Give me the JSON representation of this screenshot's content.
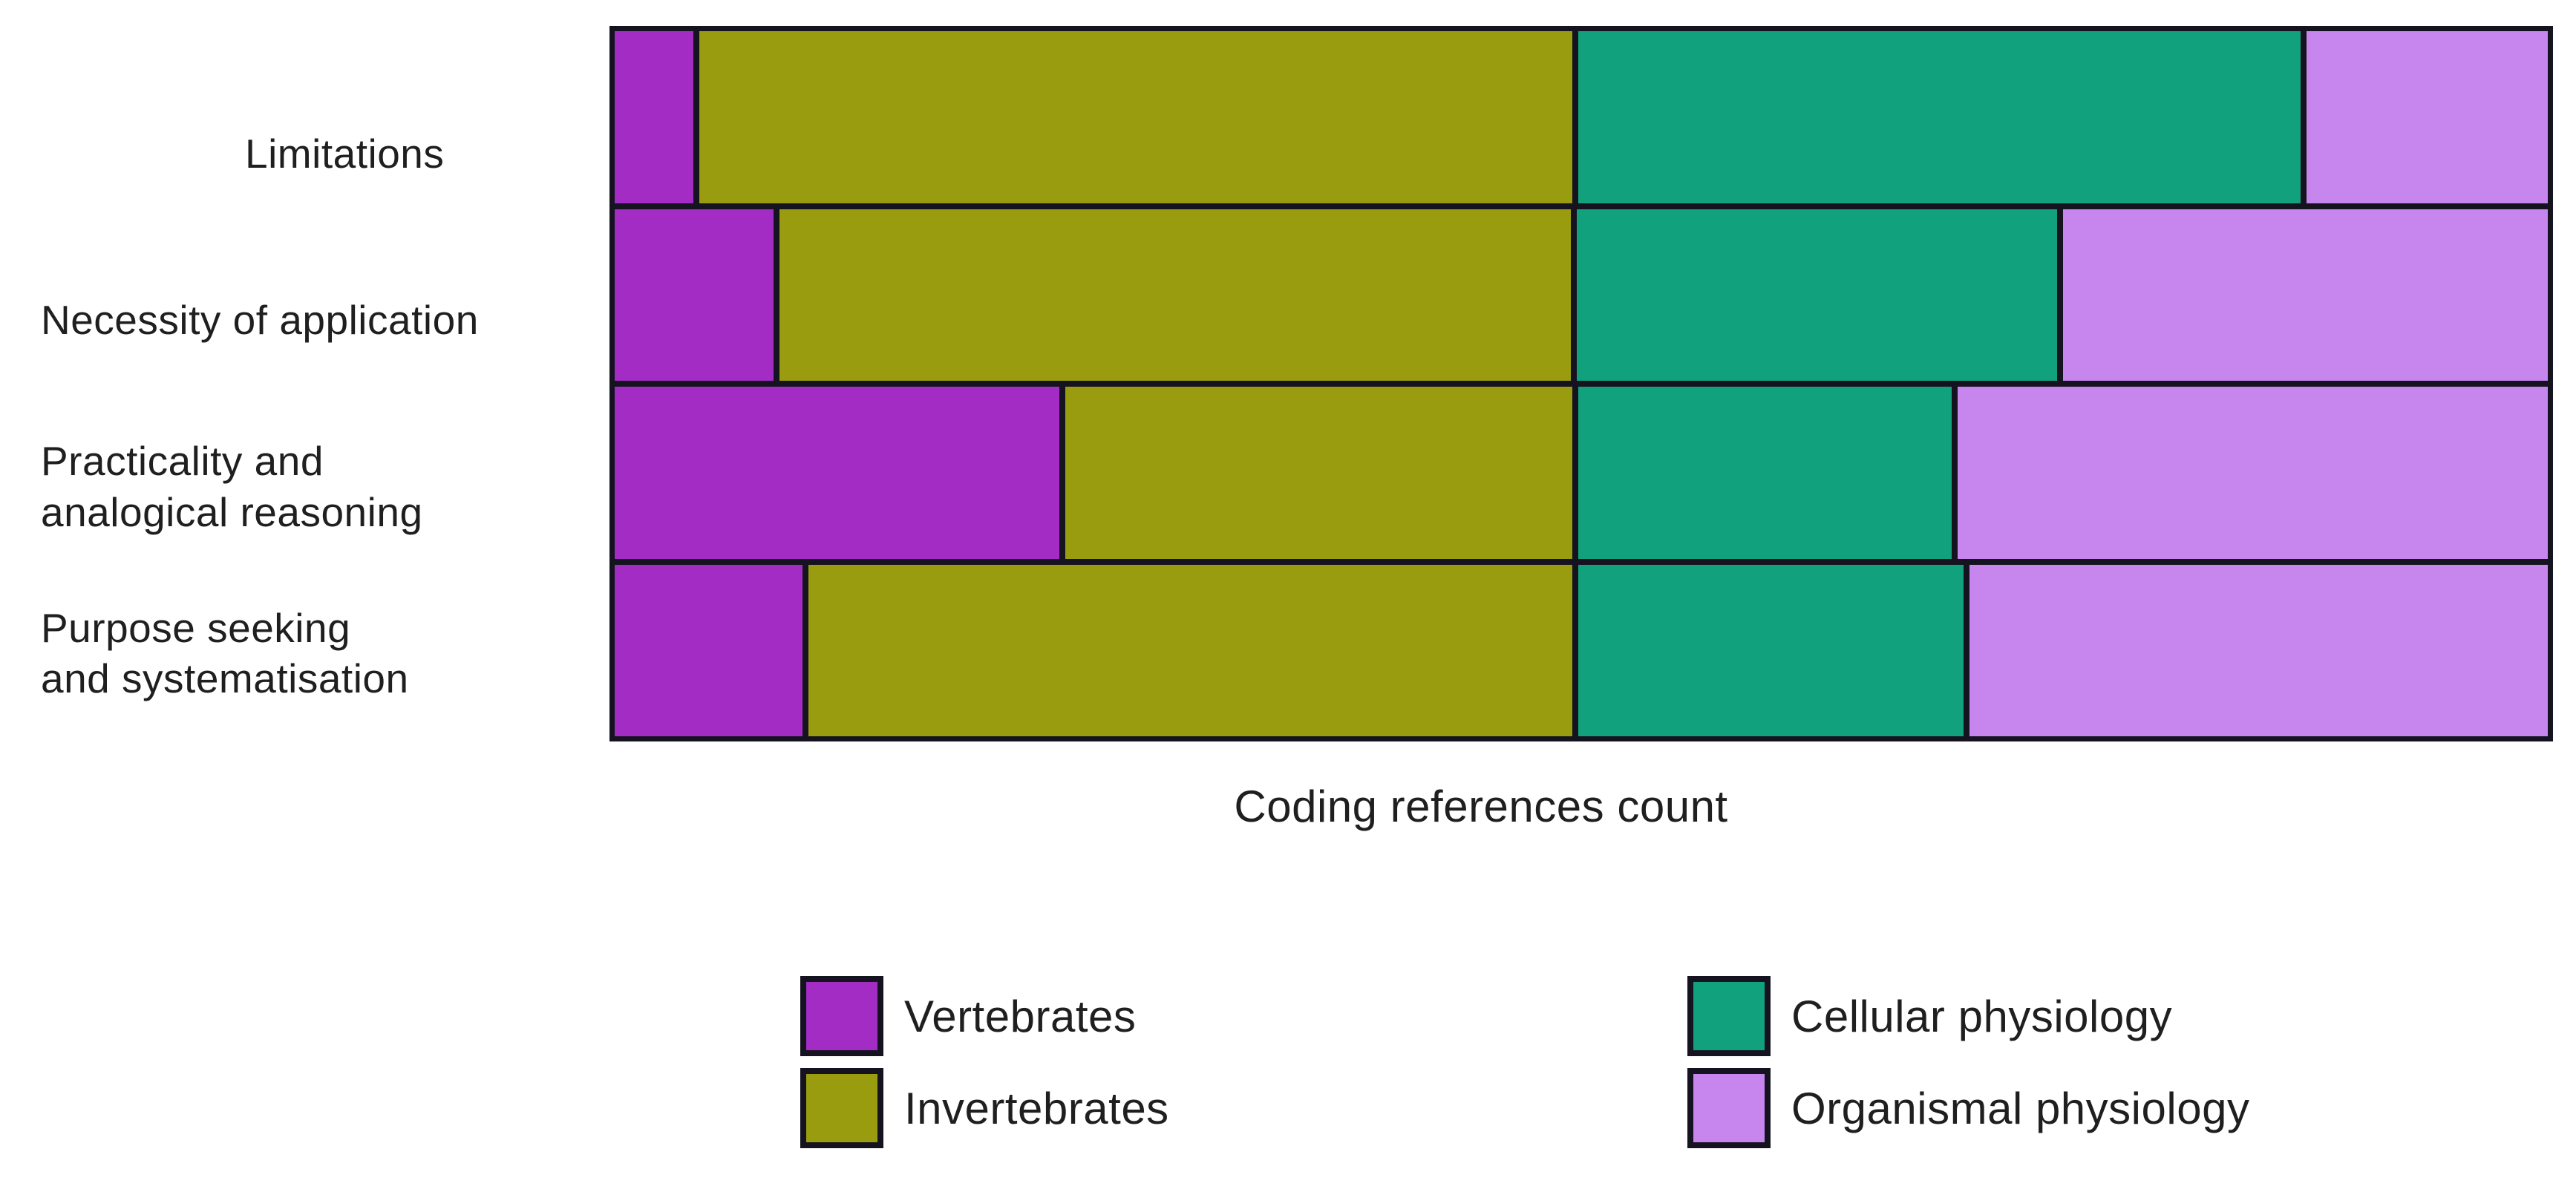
{
  "colors": {
    "outline": "#15131f",
    "text": "#1f1f1f",
    "background": "#ffffff",
    "vertebrates": "#a32cc4",
    "invertebrates": "#9a9c10",
    "cellular_physiology": "#11a17c",
    "organismal_physiology": "#c686ee"
  },
  "chart_data": {
    "type": "bar",
    "orientation": "horizontal",
    "stacked": true,
    "stack_mode": "percent",
    "title": "",
    "xlabel": "Coding references count",
    "ylabel": "",
    "grid": false,
    "axis_tick_labels_visible": false,
    "legend_position": "bottom",
    "legend_columns": 2,
    "categories": [
      "Limitations",
      "Necessity of application",
      "Practicality and\nanalogical reasoning",
      "Purpose seeking\nand systematisation"
    ],
    "series": [
      {
        "name": "Vertebrates",
        "color": "#a32cc4",
        "values_pct": [
          4.1,
          8.3,
          23.2,
          9.8
        ]
      },
      {
        "name": "Invertebrates",
        "color": "#9a9c10",
        "values_pct": [
          45.6,
          41.3,
          26.5,
          39.9
        ]
      },
      {
        "name": "Cellular physiology",
        "color": "#11a17c",
        "values_pct": [
          37.7,
          25.1,
          19.5,
          20.1
        ]
      },
      {
        "name": "Organismal physiology",
        "color": "#c686ee",
        "values_pct": [
          12.6,
          25.3,
          30.8,
          30.2
        ]
      }
    ]
  },
  "legend": {
    "column_1": [
      "Vertebrates",
      "Invertebrates"
    ],
    "column_2": [
      "Cellular physiology",
      "Organismal physiology"
    ]
  }
}
